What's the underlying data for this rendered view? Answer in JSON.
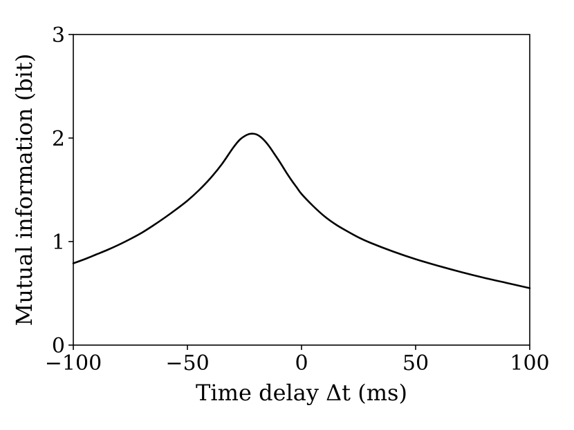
{
  "chart_data": {
    "type": "line",
    "title": "",
    "xlabel": "Time delay Δt (ms)",
    "ylabel": "Mutual information (bit)",
    "xlim": [
      -100,
      100
    ],
    "ylim": [
      0,
      3
    ],
    "xticks": [
      -100,
      -50,
      0,
      50,
      100
    ],
    "xtick_labels": [
      "−100",
      "−50",
      "0",
      "50",
      "100"
    ],
    "yticks": [
      0,
      1,
      2,
      3
    ],
    "ytick_labels": [
      "0",
      "1",
      "2",
      "3"
    ],
    "grid": false,
    "line_color": "#000000",
    "series": [
      {
        "x": [
          -100,
          -95,
          -90,
          -85,
          -80,
          -75,
          -70,
          -65,
          -60,
          -55,
          -50,
          -45,
          -40,
          -35,
          -30,
          -27,
          -24,
          -22,
          -20,
          -18,
          -16,
          -14,
          -12,
          -10,
          -8,
          -6,
          -4,
          -2,
          0,
          5,
          10,
          15,
          20,
          25,
          30,
          40,
          50,
          60,
          70,
          80,
          90,
          100
        ],
        "y": [
          0.79,
          0.83,
          0.875,
          0.92,
          0.97,
          1.025,
          1.085,
          1.155,
          1.23,
          1.31,
          1.395,
          1.495,
          1.61,
          1.745,
          1.905,
          1.985,
          2.03,
          2.042,
          2.037,
          2.012,
          1.97,
          1.915,
          1.85,
          1.785,
          1.715,
          1.645,
          1.58,
          1.52,
          1.46,
          1.345,
          1.245,
          1.165,
          1.1,
          1.04,
          0.99,
          0.905,
          0.83,
          0.765,
          0.705,
          0.65,
          0.6,
          0.55
        ]
      }
    ]
  }
}
